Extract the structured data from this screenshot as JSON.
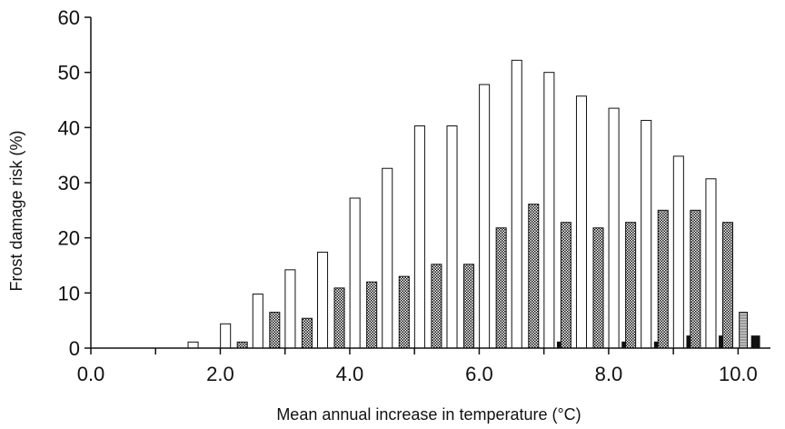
{
  "chart_data": {
    "type": "bar",
    "title": "",
    "xlabel": "Mean annual increase in temperature (°C)",
    "ylabel": "Frost damage risk (%)",
    "ylim": [
      0,
      60
    ],
    "xlim": [
      0.0,
      10.5
    ],
    "yticks": [
      0,
      10,
      20,
      30,
      40,
      50,
      60
    ],
    "yticklabels": [
      "0",
      "10",
      "20",
      "30",
      "40",
      "50",
      "60"
    ],
    "xticks": [
      0,
      1,
      2,
      3,
      4,
      5,
      6,
      7,
      8,
      9,
      10
    ],
    "xticklabels": [
      "0.0",
      "",
      "2.0",
      "",
      "4.0",
      "",
      "6.0",
      "",
      "8.0",
      "",
      "10.0"
    ],
    "grid": false,
    "legend": "none",
    "x": [
      0.5,
      1.0,
      1.5,
      2.0,
      2.5,
      3.0,
      3.5,
      4.0,
      4.5,
      5.0,
      5.5,
      6.0,
      6.5,
      7.0,
      7.5,
      8.0,
      8.5,
      9.0,
      9.5,
      10.0
    ],
    "series": [
      {
        "pattern": "white",
        "values": [
          0,
          0,
          0,
          1.1,
          4.4,
          9.8,
          14.2,
          17.4,
          27.2,
          32.6,
          40.3,
          40.3,
          47.8,
          52.2,
          50.0,
          45.7,
          43.5,
          41.3,
          34.8,
          30.7
        ]
      },
      {
        "pattern": "checker",
        "values": [
          0,
          0,
          0,
          0,
          1.1,
          6.5,
          5.4,
          10.9,
          12.0,
          13.0,
          15.2,
          15.2,
          21.8,
          26.1,
          22.8,
          21.8,
          22.8,
          25.0,
          25.0,
          22.8
        ]
      },
      {
        "pattern": "gray",
        "values": [
          0,
          0,
          0,
          0,
          0,
          0,
          0,
          0,
          0,
          0,
          0,
          1.1,
          1.1,
          3.3,
          5.4,
          4.4,
          5.4,
          5.4,
          4.4,
          6.5
        ]
      },
      {
        "pattern": "black",
        "values": [
          0,
          0,
          0,
          0,
          0,
          0,
          0,
          0,
          0,
          0,
          0,
          0,
          0,
          1.1,
          0,
          1.1,
          1.1,
          2.2,
          2.2,
          2.2
        ]
      }
    ]
  }
}
